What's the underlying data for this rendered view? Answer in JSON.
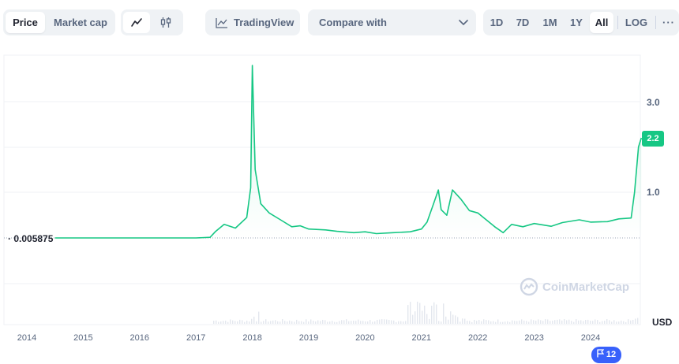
{
  "toolbar": {
    "price_tab": "Price",
    "market_cap_tab": "Market cap",
    "line_chart_icon": "line-chart-icon",
    "candlestick_icon": "candlestick-icon",
    "tradingview_label": "TradingView",
    "compare_label": "Compare with",
    "ranges": [
      "1D",
      "7D",
      "1M",
      "1Y",
      "All"
    ],
    "active_range": "All",
    "log_label": "LOG",
    "more_label": "···"
  },
  "chart_data": {
    "type": "line",
    "y_ticks": [
      {
        "label": "3.0",
        "value": 3.0
      },
      {
        "label": "1.0",
        "value": 1.0
      }
    ],
    "x_tick_labels": [
      "2014",
      "2015",
      "2016",
      "2017",
      "2018",
      "2019",
      "2020",
      "2021",
      "2022",
      "2023",
      "2024"
    ],
    "start_price_label": "0.005875",
    "current_price_label": "2.2",
    "currency_label": "USD",
    "watermark": "CoinMarketCap",
    "line_color": "#16c784",
    "series": {
      "x": [
        2014.5,
        2015.0,
        2015.5,
        2016.0,
        2016.5,
        2017.0,
        2017.25,
        2017.35,
        2017.5,
        2017.7,
        2017.9,
        2017.97,
        2018.0,
        2018.05,
        2018.15,
        2018.3,
        2018.5,
        2018.7,
        2018.85,
        2019.0,
        2019.3,
        2019.5,
        2019.8,
        2020.0,
        2020.2,
        2020.5,
        2020.8,
        2021.0,
        2021.1,
        2021.2,
        2021.3,
        2021.35,
        2021.45,
        2021.55,
        2021.7,
        2021.85,
        2022.0,
        2022.15,
        2022.3,
        2022.45,
        2022.6,
        2022.8,
        2023.0,
        2023.3,
        2023.5,
        2023.8,
        2024.0,
        2024.3,
        2024.5,
        2024.72,
        2024.78,
        2024.85,
        2024.9
      ],
      "y": [
        0.0059,
        0.0063,
        0.0058,
        0.0055,
        0.0057,
        0.0061,
        0.02,
        0.15,
        0.3,
        0.22,
        0.45,
        1.1,
        3.8,
        1.5,
        0.75,
        0.55,
        0.4,
        0.25,
        0.27,
        0.2,
        0.18,
        0.15,
        0.12,
        0.14,
        0.1,
        0.12,
        0.14,
        0.2,
        0.35,
        0.7,
        1.05,
        0.62,
        0.5,
        1.05,
        0.85,
        0.6,
        0.55,
        0.4,
        0.25,
        0.12,
        0.3,
        0.25,
        0.32,
        0.26,
        0.34,
        0.4,
        0.35,
        0.36,
        0.42,
        0.44,
        1.0,
        2.0,
        2.2
      ]
    }
  }
}
